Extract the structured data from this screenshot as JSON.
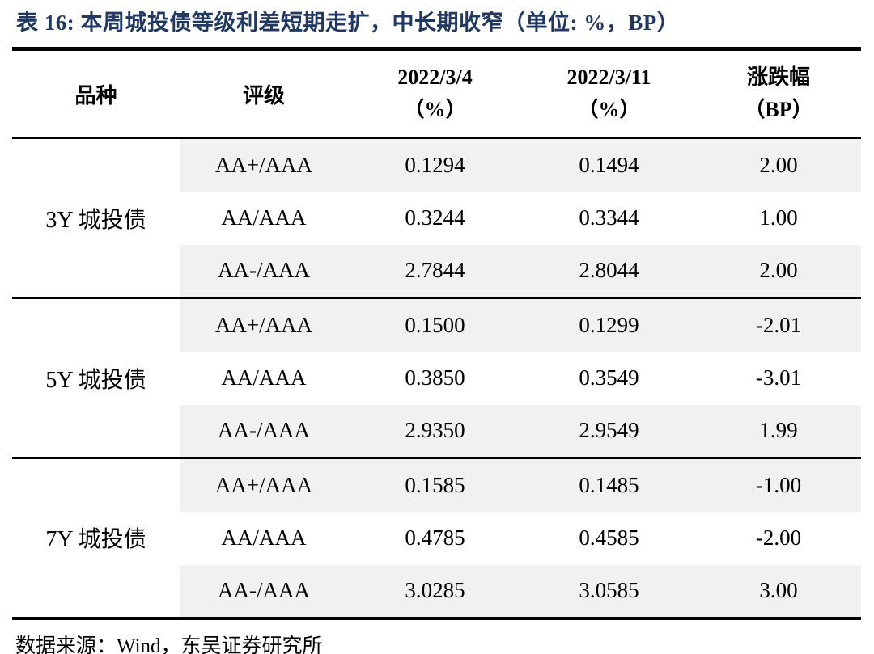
{
  "title": "表 16: 本周城投债等级利差短期走扩，中长期收窄（单位: %，BP）",
  "colors": {
    "title_navy": "#1f3864",
    "stripe_gray": "#f1f1f2",
    "rule_black": "#000000"
  },
  "chart_data": {
    "type": "table",
    "title": "表 16: 本周城投债等级利差短期走扩，中长期收窄（单位: %，BP）",
    "columns": [
      "品种",
      "评级",
      "2022/3/4（%）",
      "2022/3/11（%）",
      "涨跌幅（BP）"
    ],
    "rows": [
      [
        "3Y 城投债",
        "AA+/AAA",
        0.1294,
        0.1494,
        2.0
      ],
      [
        "3Y 城投债",
        "AA/AAA",
        0.3244,
        0.3344,
        1.0
      ],
      [
        "3Y 城投债",
        "AA-/AAA",
        2.7844,
        2.8044,
        2.0
      ],
      [
        "5Y 城投债",
        "AA+/AAA",
        0.15,
        0.1299,
        -2.01
      ],
      [
        "5Y 城投债",
        "AA/AAA",
        0.385,
        0.3549,
        -3.01
      ],
      [
        "5Y 城投债",
        "AA-/AAA",
        2.935,
        2.9549,
        1.99
      ],
      [
        "7Y 城投债",
        "AA+/AAA",
        0.1585,
        0.1485,
        -1.0
      ],
      [
        "7Y 城投债",
        "AA/AAA",
        0.4785,
        0.4585,
        -2.0
      ],
      [
        "7Y 城投债",
        "AA-/AAA",
        3.0285,
        3.0585,
        3.0
      ]
    ]
  },
  "table": {
    "headers": {
      "variety": "品种",
      "rating": "评级",
      "d1_line1": "2022/3/4",
      "d1_line2": "（%）",
      "d2_line1": "2022/3/11",
      "d2_line2": "（%）",
      "chg_line1": "涨跌幅",
      "chg_line2": "（BP）"
    },
    "groups": [
      {
        "name": "3Y 城投债",
        "rows": [
          {
            "rating": "AA+/AAA",
            "v1": "0.1294",
            "v2": "0.1494",
            "chg": "2.00"
          },
          {
            "rating": "AA/AAA",
            "v1": "0.3244",
            "v2": "0.3344",
            "chg": "1.00"
          },
          {
            "rating": "AA-/AAA",
            "v1": "2.7844",
            "v2": "2.8044",
            "chg": "2.00"
          }
        ]
      },
      {
        "name": "5Y 城投债",
        "rows": [
          {
            "rating": "AA+/AAA",
            "v1": "0.1500",
            "v2": "0.1299",
            "chg": "-2.01"
          },
          {
            "rating": "AA/AAA",
            "v1": "0.3850",
            "v2": "0.3549",
            "chg": "-3.01"
          },
          {
            "rating": "AA-/AAA",
            "v1": "2.9350",
            "v2": "2.9549",
            "chg": "1.99"
          }
        ]
      },
      {
        "name": "7Y 城投债",
        "rows": [
          {
            "rating": "AA+/AAA",
            "v1": "0.1585",
            "v2": "0.1485",
            "chg": "-1.00"
          },
          {
            "rating": "AA/AAA",
            "v1": "0.4785",
            "v2": "0.4585",
            "chg": "-2.00"
          },
          {
            "rating": "AA-/AAA",
            "v1": "3.0285",
            "v2": "3.0585",
            "chg": "3.00"
          }
        ]
      }
    ]
  },
  "footer": {
    "source": "数据来源：Wind，东吴证券研究所"
  }
}
